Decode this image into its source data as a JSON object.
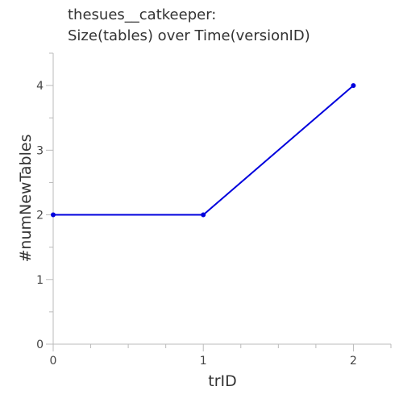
{
  "chart_data": {
    "type": "line",
    "title_lines": [
      "thesues__catkeeper:",
      "Size(tables) over Time(versionID)"
    ],
    "xlabel": "trID",
    "ylabel": "#numNewTables",
    "x": [
      0,
      1,
      2
    ],
    "series": [
      {
        "values": [
          2,
          2,
          4
        ],
        "color": "#0000dd"
      }
    ],
    "xlim": [
      0,
      2.25
    ],
    "ylim": [
      0,
      4.5
    ],
    "x_ticks": [
      0,
      1,
      2
    ],
    "y_ticks": [
      0,
      1,
      2,
      3,
      4
    ],
    "x_minor_step": 0.25,
    "y_minor_step": 0.5,
    "grid": false,
    "axis_color": "#bbbbbb",
    "text_color": "#333333"
  }
}
